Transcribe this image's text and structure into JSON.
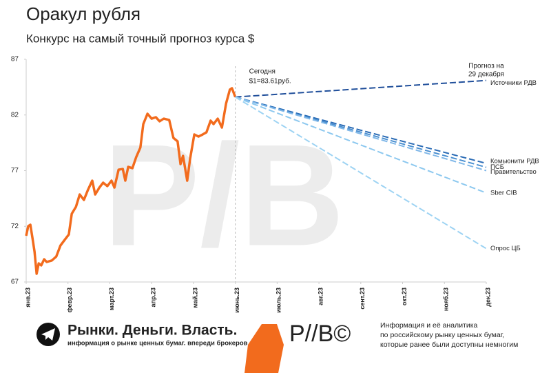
{
  "chart_data": {
    "type": "line",
    "title": "Оракул рубля",
    "subtitle": "Конкурс на самый точный прогноз курса $",
    "xlim": [
      0,
      11
    ],
    "xticks": [
      {
        "value": 0,
        "label": "янв.23"
      },
      {
        "value": 1,
        "label": "февр.23"
      },
      {
        "value": 2,
        "label": "март.23"
      },
      {
        "value": 3,
        "label": "апр.23"
      },
      {
        "value": 4,
        "label": "май.23"
      },
      {
        "value": 5,
        "label": "июнь.23"
      },
      {
        "value": 6,
        "label": "июль.23"
      },
      {
        "value": 7,
        "label": "авг.23"
      },
      {
        "value": 8,
        "label": "сент.23"
      },
      {
        "value": 9,
        "label": "окт.23"
      },
      {
        "value": 10,
        "label": "нояб.23"
      },
      {
        "value": 11,
        "label": "дек.23"
      }
    ],
    "ylim": [
      67,
      87
    ],
    "yticks": [
      67,
      72,
      77,
      82,
      87
    ],
    "series": [
      {
        "color": "#f26b1d",
        "dashed": false,
        "x": [
          0,
          0.05,
          0.1,
          0.15,
          0.2,
          0.25,
          0.3,
          0.36,
          0.43,
          0.49,
          0.61,
          0.72,
          0.82,
          0.92,
          1.02,
          1.09,
          1.19,
          1.28,
          1.38,
          1.48,
          1.58,
          1.65,
          1.75,
          1.84,
          1.94,
          2.04,
          2.11,
          2.21,
          2.31,
          2.37,
          2.44,
          2.54,
          2.63,
          2.73,
          2.8,
          2.9,
          3.0,
          3.1,
          3.19,
          3.29,
          3.42,
          3.52,
          3.62,
          3.69,
          3.75,
          3.85,
          3.92,
          4.02,
          4.12,
          4.22,
          4.31,
          4.41,
          4.48,
          4.58,
          4.68,
          4.78,
          4.87,
          4.92,
          5.0
        ],
        "values": [
          71.15,
          72.02,
          72.14,
          70.96,
          69.72,
          67.74,
          68.67,
          68.49,
          69.04,
          68.8,
          68.92,
          69.29,
          70.28,
          70.78,
          71.27,
          73.13,
          73.75,
          74.86,
          74.37,
          75.3,
          76.1,
          74.86,
          75.48,
          75.92,
          75.61,
          76.1,
          75.48,
          77.09,
          77.15,
          76.1,
          77.34,
          77.22,
          78.21,
          79.07,
          81.18,
          82.11,
          81.67,
          81.8,
          81.43,
          81.67,
          81.55,
          79.94,
          79.63,
          77.59,
          78.33,
          76.1,
          78.08,
          80.25,
          80.06,
          80.25,
          80.44,
          81.49,
          81.18,
          81.67,
          80.87,
          83.04,
          84.28,
          84.4,
          83.61
        ]
      },
      {
        "name": "Источники РДВ",
        "color": "#1f4e9a",
        "dashed": true,
        "x": [
          5,
          11
        ],
        "values": [
          83.61,
          85.1
        ]
      },
      {
        "name": "Комьюнити РДВ",
        "color": "#2a6bb5",
        "dashed": true,
        "x": [
          5,
          11
        ],
        "values": [
          83.61,
          77.65
        ]
      },
      {
        "name": "ПСБ",
        "color": "#4a8fd0",
        "dashed": true,
        "x": [
          5,
          11
        ],
        "values": [
          83.61,
          77.3
        ]
      },
      {
        "name": "Правительство",
        "color": "#7fb7e8",
        "dashed": true,
        "x": [
          5,
          11
        ],
        "values": [
          83.61,
          77.0
        ]
      },
      {
        "name": "Sber CIB",
        "color": "#8cc8ef",
        "dashed": true,
        "x": [
          5,
          11
        ],
        "values": [
          83.61,
          75.0
        ]
      },
      {
        "name": "Опрос ЦБ",
        "color": "#9dd3f3",
        "dashed": true,
        "x": [
          5,
          11
        ],
        "values": [
          83.61,
          70.0
        ]
      }
    ],
    "annotations": [
      "Сегодня",
      "$1=83.61руб.",
      "Прогноз на",
      "29 декабря"
    ]
  },
  "footer": {
    "brand": "Рынки. Деньги. Власть.",
    "tagline": "информация о рынке ценных бумаг. впереди брокеров и банков.",
    "about": [
      "Информация и её аналитика",
      "по российскому рынку ценных бумаг,",
      "которые ранее были доступны немногим"
    ]
  }
}
